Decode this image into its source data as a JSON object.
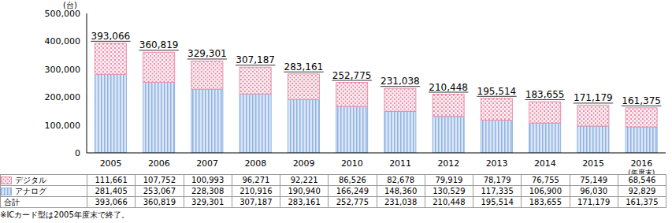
{
  "chart_data": {
    "type": "bar",
    "stacked": true,
    "grid": false,
    "legend": "bottom-left",
    "y_label": "(台)",
    "categories": [
      "2005",
      "2006",
      "2007",
      "2008",
      "2009",
      "2010",
      "2011",
      "2012",
      "2013",
      "2014",
      "2015",
      "2016\n(年度末)"
    ],
    "series": [
      {
        "name": "デジタル",
        "color": "#e890ac",
        "values": [
          111661,
          107752,
          100993,
          96271,
          92221,
          86526,
          82678,
          79919,
          78179,
          76755,
          75149,
          68546
        ],
        "value_labels": [
          "111,661",
          "107,752",
          "100,993",
          "96,271",
          "92,221",
          "86,526",
          "82,678",
          "79,919",
          "78,179",
          "76,755",
          "75,149",
          "68,546"
        ]
      },
      {
        "name": "アナログ",
        "color": "#8fb2e4",
        "values": [
          281405,
          253067,
          228308,
          210916,
          190940,
          166249,
          148360,
          130529,
          117335,
          106900,
          96030,
          92829
        ],
        "value_labels": [
          "281,405",
          "253,067",
          "228,308",
          "210,916",
          "190,940",
          "166,249",
          "148,360",
          "130,529",
          "117,335",
          "106,900",
          "96,030",
          "92,829"
        ]
      }
    ],
    "total_name": "合計",
    "totals": [
      393066,
      360819,
      329301,
      307187,
      283161,
      252775,
      231038,
      210448,
      195514,
      183655,
      171179,
      161375
    ],
    "total_labels": [
      "393,066",
      "360,819",
      "329,301",
      "307,187",
      "283,161",
      "252,775",
      "231,038",
      "210,448",
      "195,514",
      "183,655",
      "171,179",
      "161,375"
    ],
    "ylim": [
      0,
      500000
    ],
    "yticks": [
      0,
      {
        "value": 100000,
        "label": "100,000"
      },
      {
        "value": 200000,
        "label": "200,000"
      },
      {
        "value": 300000,
        "label": "300,000"
      },
      {
        "value": 400000,
        "label": "400,000"
      },
      {
        "value": 500000,
        "label": "500,000"
      }
    ],
    "note": "※ICカード型は2005年度末で終了。"
  }
}
